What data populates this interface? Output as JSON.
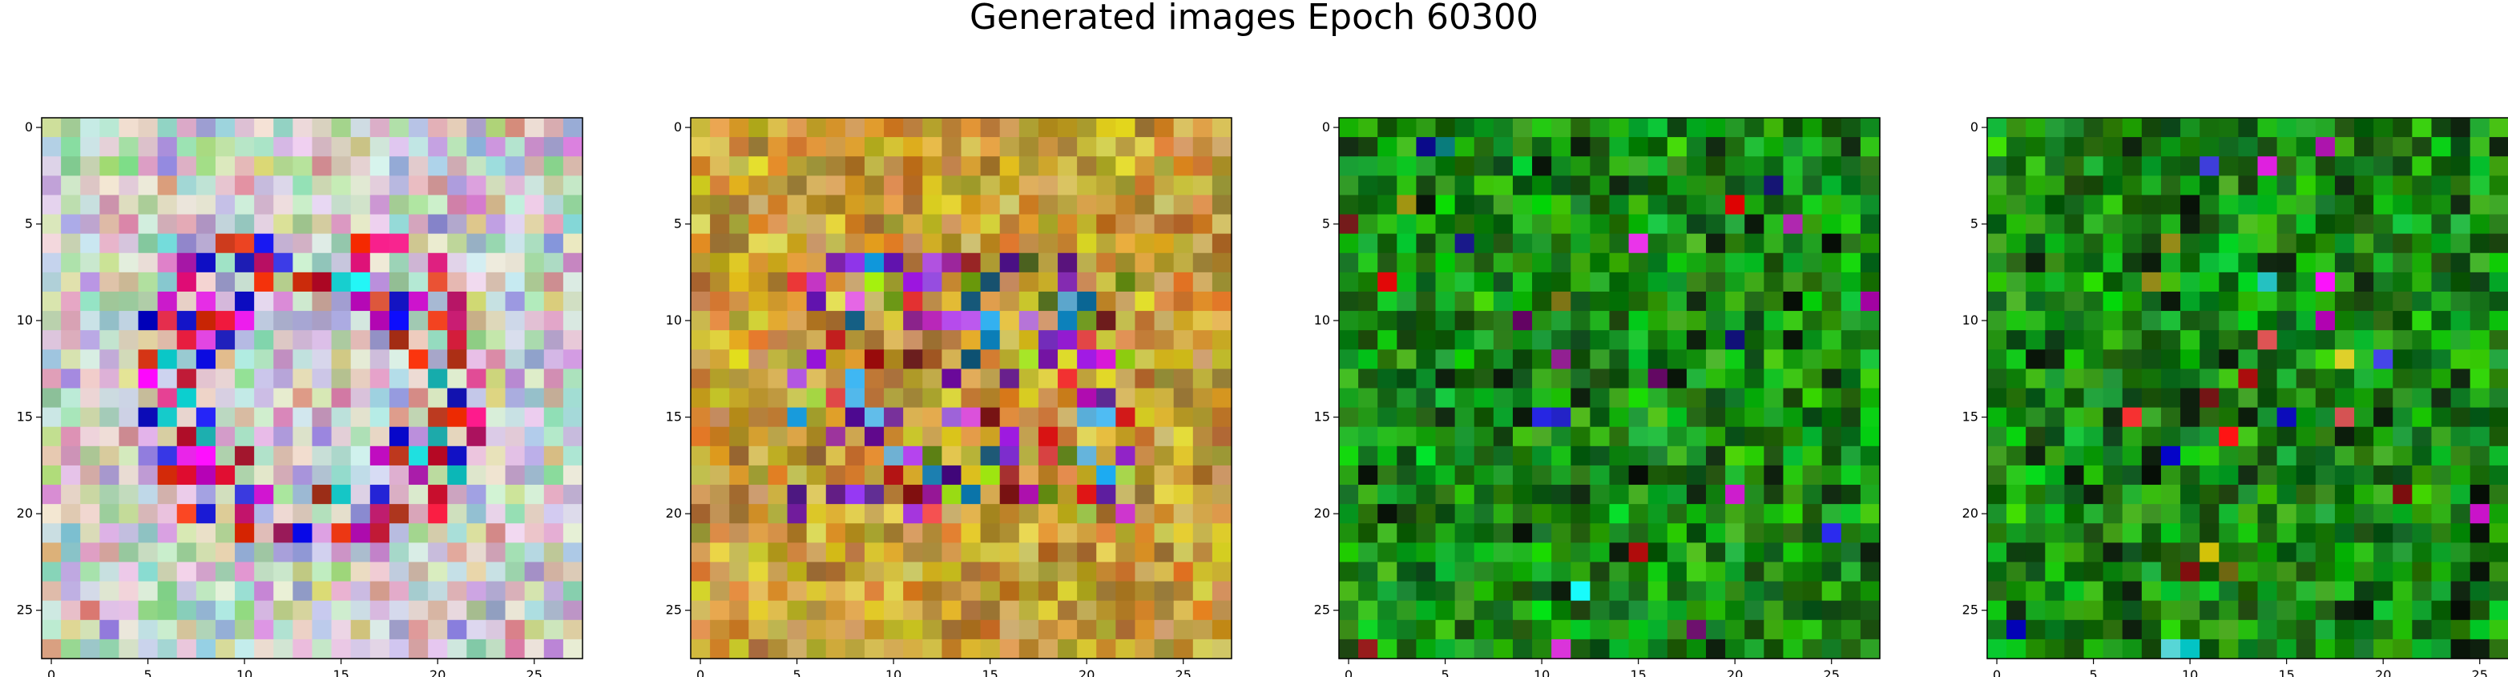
{
  "figure": {
    "title": "Generated images Epoch 60300"
  },
  "panels": [
    {
      "name": "generated-image-1",
      "palette": "pastel-multicolor",
      "x_ticks": [
        "0",
        "5",
        "10",
        "15",
        "20",
        "25"
      ],
      "y_ticks": [
        "0",
        "5",
        "10",
        "15",
        "20",
        "25"
      ]
    },
    {
      "name": "generated-image-2",
      "palette": "ochre-multicolor",
      "x_ticks": [
        "0",
        "5",
        "10",
        "15",
        "20",
        "25"
      ],
      "y_ticks": [
        "0",
        "5",
        "10",
        "15",
        "20",
        "25"
      ]
    },
    {
      "name": "generated-image-3",
      "palette": "green",
      "x_ticks": [
        "0",
        "5",
        "10",
        "15",
        "20",
        "25"
      ],
      "y_ticks": [
        "0",
        "5",
        "10",
        "15",
        "20",
        "25"
      ]
    },
    {
      "name": "generated-image-4",
      "palette": "green",
      "x_ticks": [
        "0",
        "5",
        "10",
        "15",
        "20",
        "25"
      ],
      "y_ticks": [
        "0",
        "5",
        "10",
        "15",
        "20",
        "25"
      ]
    }
  ],
  "colors": {
    "axis": "#000000",
    "background": "#ffffff"
  }
}
